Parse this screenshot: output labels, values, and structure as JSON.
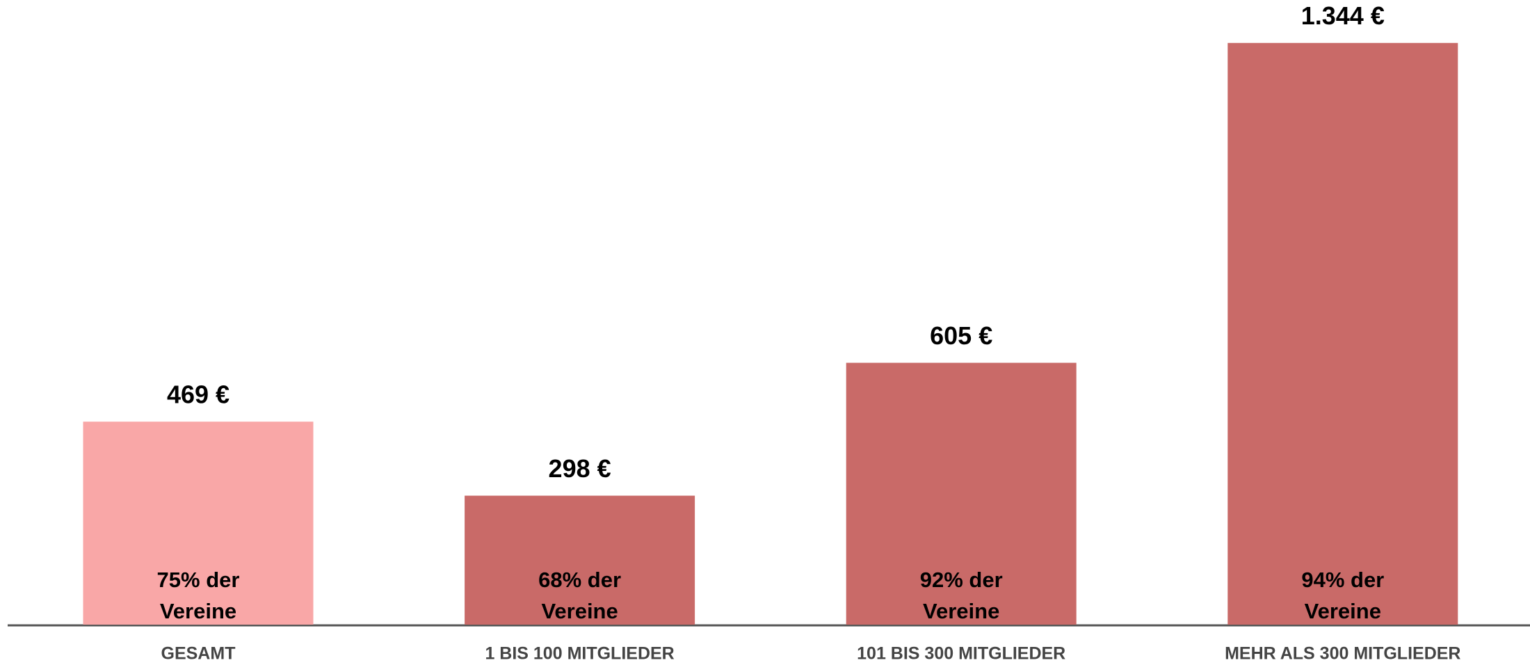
{
  "chart_data": {
    "type": "bar",
    "categories": [
      "GESAMT",
      "1 BIS 100 MITGLIEDER",
      "101 BIS 300 MITGLIEDER",
      "MEHR ALS 300 MITGLIEDER"
    ],
    "values": [
      469,
      298,
      605,
      1344
    ],
    "value_labels": [
      "469 €",
      "298 €",
      "605 €",
      "1.344 €"
    ],
    "colors": [
      "#f9a7a7",
      "#c96a68",
      "#c96a68",
      "#c96a68"
    ],
    "bar_notes": [
      [
        "75% der",
        "Vereine"
      ],
      [
        "68% der",
        "Vereine"
      ],
      [
        "92% der",
        "Vereine"
      ],
      [
        "94% der",
        "Vereine"
      ]
    ],
    "ylim": [
      0,
      1440
    ]
  }
}
